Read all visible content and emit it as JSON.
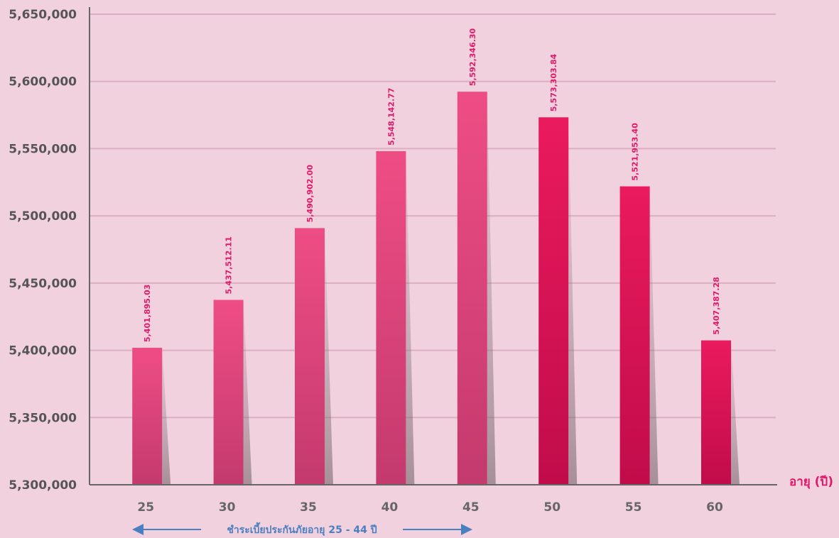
{
  "chart_data": {
    "type": "bar",
    "title": "",
    "xlabel": "อายุ (ปี)",
    "ylabel": "",
    "categories": [
      "25",
      "30",
      "35",
      "40",
      "45",
      "50",
      "55",
      "60"
    ],
    "values": [
      5401895.03,
      5437512.11,
      5490902.0,
      5548142.77,
      5592346.3,
      5573303.84,
      5521953.4,
      5407387.28
    ],
    "data_labels": [
      "5,401,895.03",
      "5,437,512.11",
      "5,490,902.00",
      "5,548,142.77",
      "5,592,346.30",
      "5,573,303.84",
      "5,521,953.40",
      "5,407,387.28"
    ],
    "ylim": [
      5300000,
      5650000
    ],
    "yticks": [
      5300000,
      5350000,
      5400000,
      5450000,
      5500000,
      5550000,
      5600000,
      5650000
    ],
    "ytick_labels": [
      "5,300,000",
      "5,350,000",
      "5,400,000",
      "5,450,000",
      "5,500,000",
      "5,550,000",
      "5,600,000",
      "5,650,000"
    ],
    "grid": true,
    "annotation": "ชำระเบี้ยประกันภัยอายุ 25 - 44 ปี",
    "colors": {
      "background": "#f2d1de",
      "bar_early": "#e8487e",
      "bar_early_bottom": "#c9336a",
      "bar_late": "#e6195a",
      "bar_late_bottom": "#c40d4a",
      "data_label": "#e0186a",
      "grid": "#dcaec1",
      "axis": "#666666",
      "xlabel": "#e0186a",
      "annotation": "#4a7fc1"
    }
  }
}
